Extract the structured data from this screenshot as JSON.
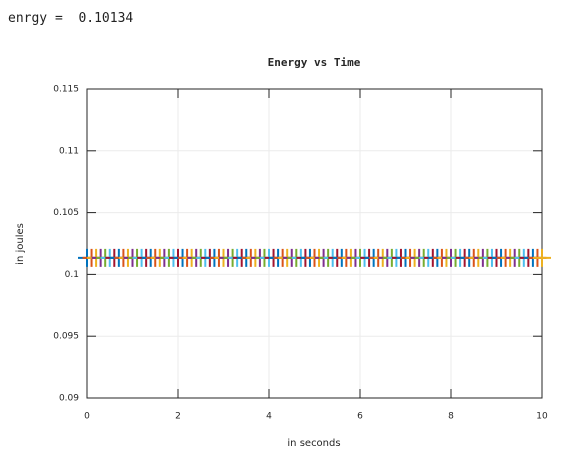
{
  "console": {
    "name": "enrgy =",
    "value": "0.10134"
  },
  "chart_data": {
    "type": "scatter",
    "marker": "+",
    "title": "Energy vs Time",
    "x_label": "in seconds",
    "y_label": "in joules",
    "x": [
      0,
      0.1,
      0.2,
      0.3,
      0.4,
      0.5,
      0.6,
      0.7,
      0.8,
      0.9,
      1,
      1.1,
      1.2,
      1.3,
      1.4,
      1.5,
      1.6,
      1.7,
      1.8,
      1.9,
      2,
      2.1,
      2.2,
      2.3,
      2.4,
      2.5,
      2.6,
      2.7,
      2.8,
      2.9,
      3,
      3.1,
      3.2,
      3.3,
      3.4,
      3.5,
      3.6,
      3.7,
      3.8,
      3.9,
      4,
      4.1,
      4.2,
      4.3,
      4.4,
      4.5,
      4.6,
      4.7,
      4.8,
      4.9,
      5,
      5.1,
      5.2,
      5.3,
      5.4,
      5.5,
      5.6,
      5.7,
      5.8,
      5.9,
      6,
      6.1,
      6.2,
      6.3,
      6.4,
      6.5,
      6.6,
      6.7,
      6.8,
      6.9,
      7,
      7.1,
      7.2,
      7.3,
      7.4,
      7.5,
      7.6,
      7.7,
      7.8,
      7.9,
      8,
      8.1,
      8.2,
      8.3,
      8.4,
      8.5,
      8.6,
      8.7,
      8.8,
      8.9,
      9,
      9.1,
      9.2,
      9.3,
      9.4,
      9.5,
      9.6,
      9.7,
      9.8,
      9.9,
      10
    ],
    "values": [
      0.10134,
      0.10134,
      0.10134,
      0.10134,
      0.10134,
      0.10134,
      0.10134,
      0.10134,
      0.10134,
      0.10134,
      0.10134,
      0.10134,
      0.10134,
      0.10134,
      0.10134,
      0.10134,
      0.10134,
      0.10134,
      0.10134,
      0.10134,
      0.10134,
      0.10134,
      0.10134,
      0.10134,
      0.10134,
      0.10134,
      0.10134,
      0.10134,
      0.10134,
      0.10134,
      0.10134,
      0.10134,
      0.10134,
      0.10134,
      0.10134,
      0.10134,
      0.10134,
      0.10134,
      0.10134,
      0.10134,
      0.10134,
      0.10134,
      0.10134,
      0.10134,
      0.10134,
      0.10134,
      0.10134,
      0.10134,
      0.10134,
      0.10134,
      0.10134,
      0.10134,
      0.10134,
      0.10134,
      0.10134,
      0.10134,
      0.10134,
      0.10134,
      0.10134,
      0.10134,
      0.10134,
      0.10134,
      0.10134,
      0.10134,
      0.10134,
      0.10134,
      0.10134,
      0.10134,
      0.10134,
      0.10134,
      0.10134,
      0.10134,
      0.10134,
      0.10134,
      0.10134,
      0.10134,
      0.10134,
      0.10134,
      0.10134,
      0.10134,
      0.10134,
      0.10134,
      0.10134,
      0.10134,
      0.10134,
      0.10134,
      0.10134,
      0.10134,
      0.10134,
      0.10134,
      0.10134,
      0.10134,
      0.10134,
      0.10134,
      0.10134,
      0.10134,
      0.10134,
      0.10134,
      0.10134,
      0.10134,
      0.10134
    ],
    "colors": [
      "#0072bd",
      "#d95319",
      "#edb120",
      "#7e2f8e",
      "#77ac30",
      "#4dbeee",
      "#a2142f"
    ],
    "xlim": [
      0,
      10
    ],
    "xticks": [
      0,
      2,
      4,
      6,
      8,
      10
    ],
    "ylim": [
      0.09,
      0.115
    ],
    "yticks": [
      0.09,
      0.095,
      0.1,
      0.105,
      0.11,
      0.115
    ],
    "grid": true
  }
}
